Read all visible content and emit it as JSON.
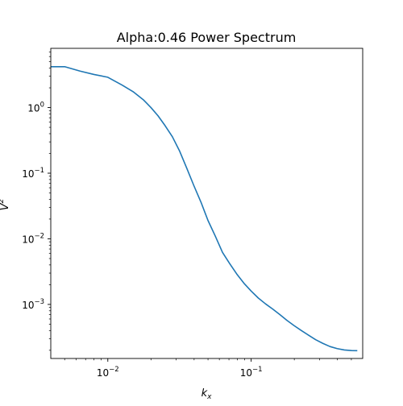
{
  "chart_data": {
    "type": "line",
    "title": "Alpha:0.46 Power Spectrum",
    "xlabel": "k",
    "xlabel_sub": "x",
    "ylabel": "V",
    "ylabel_sup": "2",
    "xscale": "log",
    "yscale": "log",
    "xlim": [
      0.004,
      0.6
    ],
    "ylim": [
      0.00015,
      8
    ],
    "grid": false,
    "x_ticks": [
      {
        "base": "10",
        "exp": "−2",
        "value": 0.01
      },
      {
        "base": "10",
        "exp": "−1",
        "value": 0.1
      }
    ],
    "y_ticks": [
      {
        "base": "10",
        "exp": "0",
        "value": 1
      },
      {
        "base": "10",
        "exp": "−1",
        "value": 0.1
      },
      {
        "base": "10",
        "exp": "−2",
        "value": 0.01
      },
      {
        "base": "10",
        "exp": "−3",
        "value": 0.001
      }
    ],
    "series": [
      {
        "color": "#1f77b4",
        "x": [
          0.004,
          0.005,
          0.0064,
          0.008,
          0.01,
          0.0126,
          0.015,
          0.0178,
          0.02,
          0.0224,
          0.0251,
          0.0282,
          0.0316,
          0.0355,
          0.0398,
          0.0447,
          0.05,
          0.0562,
          0.0631,
          0.0708,
          0.0794,
          0.0891,
          0.1,
          0.1122,
          0.1259,
          0.1413,
          0.1585,
          0.1778,
          0.1995,
          0.2239,
          0.2512,
          0.2818,
          0.3162,
          0.3548,
          0.3981,
          0.4467,
          0.5012,
          0.55
        ],
        "y": [
          4.2,
          4.2,
          3.6,
          3.2,
          2.9,
          2.2,
          1.75,
          1.3,
          1.0,
          0.75,
          0.53,
          0.36,
          0.22,
          0.12,
          0.065,
          0.036,
          0.019,
          0.011,
          0.0062,
          0.0042,
          0.0029,
          0.0021,
          0.0016,
          0.00125,
          0.00102,
          0.00085,
          0.0007,
          0.00057,
          0.000475,
          0.0004,
          0.00034,
          0.00029,
          0.000255,
          0.000228,
          0.000212,
          0.000202,
          0.000198,
          0.000197
        ]
      }
    ]
  }
}
